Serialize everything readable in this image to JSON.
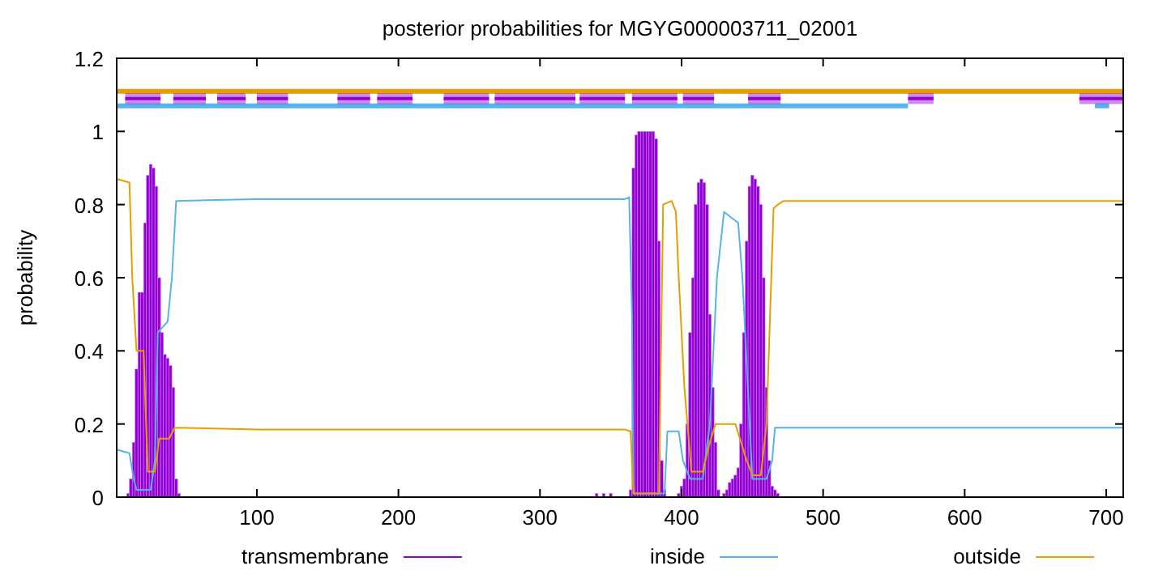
{
  "chart_data": {
    "type": "line",
    "title": "posterior probabilities for MGYG000003711_02001",
    "ylabel": "probability",
    "xlim": [
      1,
      712
    ],
    "ylim": [
      0,
      1.2
    ],
    "xticks": [
      100,
      200,
      300,
      400,
      500,
      600,
      700
    ],
    "yticks": [
      0,
      0.2,
      0.4,
      0.6,
      0.8,
      1,
      1.2
    ],
    "grid": false,
    "legend": "bottom",
    "series": [
      {
        "name": "transmembrane",
        "type": "bar",
        "color": "#9400d3",
        "x": [
          9,
          11,
          13,
          15,
          17,
          19,
          21,
          23,
          25,
          27,
          29,
          31,
          33,
          35,
          37,
          39,
          41,
          43,
          45,
          340,
          345,
          350,
          364,
          366,
          368,
          370,
          372,
          374,
          376,
          378,
          380,
          382,
          384,
          386,
          388,
          398,
          400,
          402,
          404,
          406,
          408,
          410,
          412,
          414,
          416,
          418,
          420,
          422,
          424,
          426,
          430,
          432,
          434,
          436,
          438,
          440,
          442,
          444,
          446,
          448,
          450,
          452,
          454,
          456,
          458,
          460,
          462,
          464,
          466,
          468
        ],
        "values": [
          0.01,
          0.05,
          0.15,
          0.35,
          0.56,
          0.56,
          0.75,
          0.88,
          0.91,
          0.9,
          0.85,
          0.6,
          0.45,
          0.39,
          0.38,
          0.36,
          0.3,
          0.05,
          0.01,
          0.01,
          0.01,
          0.01,
          0.02,
          0.9,
          0.99,
          1,
          1,
          1,
          1,
          1,
          1,
          0.98,
          0.7,
          0.1,
          0.02,
          0.01,
          0.03,
          0.05,
          0.2,
          0.45,
          0.6,
          0.8,
          0.86,
          0.87,
          0.86,
          0.8,
          0.5,
          0.3,
          0.15,
          0.02,
          0.01,
          0.02,
          0.04,
          0.05,
          0.06,
          0.08,
          0.2,
          0.45,
          0.7,
          0.85,
          0.88,
          0.87,
          0.85,
          0.8,
          0.6,
          0.3,
          0.1,
          0.03,
          0.02,
          0.01
        ]
      },
      {
        "name": "inside",
        "color": "#56b4e9",
        "x": [
          1,
          10,
          13,
          15,
          25,
          28,
          30,
          37,
          40,
          43,
          100,
          360,
          363,
          365,
          366,
          388,
          390,
          398,
          401,
          406,
          415,
          420,
          425,
          430,
          440,
          443,
          450,
          460,
          464,
          466,
          480,
          712
        ],
        "values": [
          0.13,
          0.12,
          0.05,
          0.02,
          0.02,
          0.1,
          0.45,
          0.48,
          0.6,
          0.81,
          0.815,
          0.815,
          0.82,
          0.5,
          0.01,
          0.01,
          0.18,
          0.18,
          0.1,
          0.05,
          0.05,
          0.2,
          0.6,
          0.78,
          0.75,
          0.6,
          0.05,
          0.05,
          0.1,
          0.19,
          0.19,
          0.19
        ]
      },
      {
        "name": "outside",
        "color": "#e69f00",
        "x": [
          1,
          10,
          12,
          15,
          20,
          23,
          28,
          31,
          38,
          42,
          100,
          360,
          364,
          366,
          384,
          387,
          393,
          396,
          398,
          402,
          407,
          415,
          420,
          424,
          438,
          442,
          446,
          450,
          456,
          460,
          465,
          468,
          472,
          712
        ],
        "values": [
          0.87,
          0.86,
          0.6,
          0.4,
          0.4,
          0.07,
          0.07,
          0.16,
          0.16,
          0.19,
          0.185,
          0.185,
          0.18,
          0.01,
          0.01,
          0.8,
          0.81,
          0.78,
          0.6,
          0.3,
          0.07,
          0.07,
          0.15,
          0.2,
          0.2,
          0.15,
          0.1,
          0.06,
          0.06,
          0.2,
          0.79,
          0.8,
          0.81,
          0.81
        ]
      },
      {
        "color": "#e69f00",
        "x": [
          1,
          712
        ],
        "values": [
          1.11,
          1.11
        ]
      },
      {
        "color": "#56b4e9",
        "x": [
          1,
          560
        ],
        "values": [
          1.07,
          1.07
        ]
      },
      {
        "color": "#56b4e9",
        "x": [
          692,
          702
        ],
        "values": [
          1.07,
          1.07
        ]
      },
      {
        "color": "#9400d3",
        "x": [
          7,
          32
        ],
        "values": [
          1.09,
          1.09
        ],
        "lower": [
          1.075,
          1.075
        ],
        "upper": [
          1.105,
          1.105
        ]
      },
      {
        "color": "#9400d3",
        "x": [
          41,
          64
        ],
        "values": [
          1.09,
          1.09
        ],
        "lower": [
          1.075,
          1.075
        ],
        "upper": [
          1.105,
          1.105
        ]
      },
      {
        "color": "#9400d3",
        "x": [
          72,
          92
        ],
        "values": [
          1.09,
          1.09
        ],
        "lower": [
          1.075,
          1.075
        ],
        "upper": [
          1.105,
          1.105
        ]
      },
      {
        "color": "#9400d3",
        "x": [
          100,
          122
        ],
        "values": [
          1.09,
          1.09
        ],
        "lower": [
          1.075,
          1.075
        ],
        "upper": [
          1.105,
          1.105
        ]
      },
      {
        "color": "#9400d3",
        "x": [
          157,
          180
        ],
        "values": [
          1.09,
          1.09
        ],
        "lower": [
          1.075,
          1.075
        ],
        "upper": [
          1.105,
          1.105
        ]
      },
      {
        "color": "#9400d3",
        "x": [
          185,
          210
        ],
        "values": [
          1.09,
          1.09
        ],
        "lower": [
          1.075,
          1.075
        ],
        "upper": [
          1.105,
          1.105
        ]
      },
      {
        "color": "#9400d3",
        "x": [
          232,
          264
        ],
        "values": [
          1.09,
          1.09
        ],
        "lower": [
          1.075,
          1.075
        ],
        "upper": [
          1.105,
          1.105
        ]
      },
      {
        "color": "#9400d3",
        "x": [
          268,
          325
        ],
        "values": [
          1.09,
          1.09
        ],
        "lower": [
          1.075,
          1.075
        ],
        "upper": [
          1.105,
          1.105
        ]
      },
      {
        "color": "#9400d3",
        "x": [
          328,
          360
        ],
        "values": [
          1.09,
          1.09
        ],
        "lower": [
          1.075,
          1.075
        ],
        "upper": [
          1.105,
          1.105
        ]
      },
      {
        "color": "#9400d3",
        "x": [
          365,
          397
        ],
        "values": [
          1.09,
          1.09
        ],
        "lower": [
          1.075,
          1.075
        ],
        "upper": [
          1.105,
          1.105
        ]
      },
      {
        "color": "#9400d3",
        "x": [
          401,
          423
        ],
        "values": [
          1.09,
          1.09
        ],
        "lower": [
          1.075,
          1.075
        ],
        "upper": [
          1.105,
          1.105
        ]
      },
      {
        "color": "#9400d3",
        "x": [
          447,
          470
        ],
        "values": [
          1.09,
          1.09
        ],
        "lower": [
          1.075,
          1.075
        ],
        "upper": [
          1.105,
          1.105
        ]
      },
      {
        "color": "#9400d3",
        "x": [
          560,
          578
        ],
        "values": [
          1.09,
          1.09
        ],
        "lower": [
          1.075,
          1.075
        ],
        "upper": [
          1.105,
          1.105
        ]
      },
      {
        "color": "#9400d3",
        "x": [
          681,
          712
        ],
        "values": [
          1.09,
          1.09
        ],
        "lower": [
          1.075,
          1.075
        ],
        "upper": [
          1.105,
          1.105
        ]
      }
    ]
  }
}
